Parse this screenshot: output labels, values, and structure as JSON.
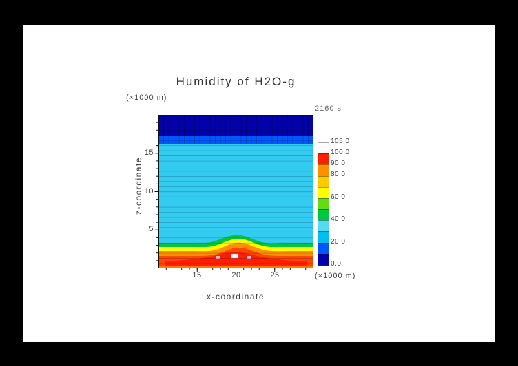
{
  "title": "Humidity of H2O-g",
  "time_label": "2160 s",
  "axes": {
    "x_label": "x-coordinate",
    "x_unit": "(×1000 m)",
    "y_label": "z-coordinate",
    "y_unit": "(×1000 m)",
    "x_ticks": [
      "15",
      "20",
      "25"
    ],
    "y_ticks": [
      "15",
      "10",
      "5"
    ]
  },
  "colorbar": {
    "labels": [
      "105.0",
      "100.0",
      "90.0",
      "80.0",
      "60.0",
      "40.0",
      "20.0",
      "0.0"
    ],
    "cell_colors_bottom_to_top": [
      "#0202A8",
      "#0057FF",
      "#00BEF0",
      "#55DAF2",
      "#00C83C",
      "#64DC14",
      "#FFFF00",
      "#FFC800",
      "#FF9000",
      "#FF2000",
      "#FFFFFF"
    ]
  },
  "chart_data": {
    "type": "heatmap",
    "title": "Humidity of H2O-g",
    "xlabel": "x-coordinate (×1000 m)",
    "ylabel": "z-coordinate (×1000 m)",
    "time": "2160 s",
    "x_range": [
      10,
      30
    ],
    "z_range": [
      0,
      20
    ],
    "levels": [
      0,
      10,
      20,
      30,
      40,
      50,
      60,
      70,
      80,
      90,
      100,
      105
    ],
    "colorbar_labels": [
      105.0,
      100.0,
      90.0,
      80.0,
      60.0,
      40.0,
      20.0,
      0.0
    ],
    "bands_vertical_profile": [
      {
        "z_from": 17.3,
        "z_to": 20.0,
        "humidity": "0-10",
        "color": "#0202A8"
      },
      {
        "z_from": 16.1,
        "z_to": 17.3,
        "humidity": "10-20",
        "color": "#0057FF"
      },
      {
        "z_from": 3.3,
        "z_to": 16.1,
        "humidity": "20-40",
        "color": "#33CCF0"
      },
      {
        "z_from": 2.8,
        "z_to": 3.3,
        "humidity": "40-60",
        "color": "#00C83C"
      },
      {
        "z_from": 2.3,
        "z_to": 2.8,
        "humidity": "60-70",
        "color": "#FFFF00"
      },
      {
        "z_from": 1.7,
        "z_to": 2.3,
        "humidity": "70-80",
        "color": "#FF9000"
      },
      {
        "z_from": 1.0,
        "z_to": 1.7,
        "humidity": "80-90",
        "color": "#FF4600"
      },
      {
        "z_from": 0.4,
        "z_to": 1.0,
        "humidity": "90-100",
        "color": "#FF1E00"
      },
      {
        "z_from": 0.0,
        "z_to": 0.4,
        "humidity": "80-90",
        "color": "#FF7A00"
      }
    ],
    "hotspot": {
      "x": 20,
      "z": 1.2,
      "humidity": "100-105",
      "note": "small white/pink maxima near surface at x≈19-21; warm layers bulge upward to z≈2.5 around x=20"
    }
  }
}
